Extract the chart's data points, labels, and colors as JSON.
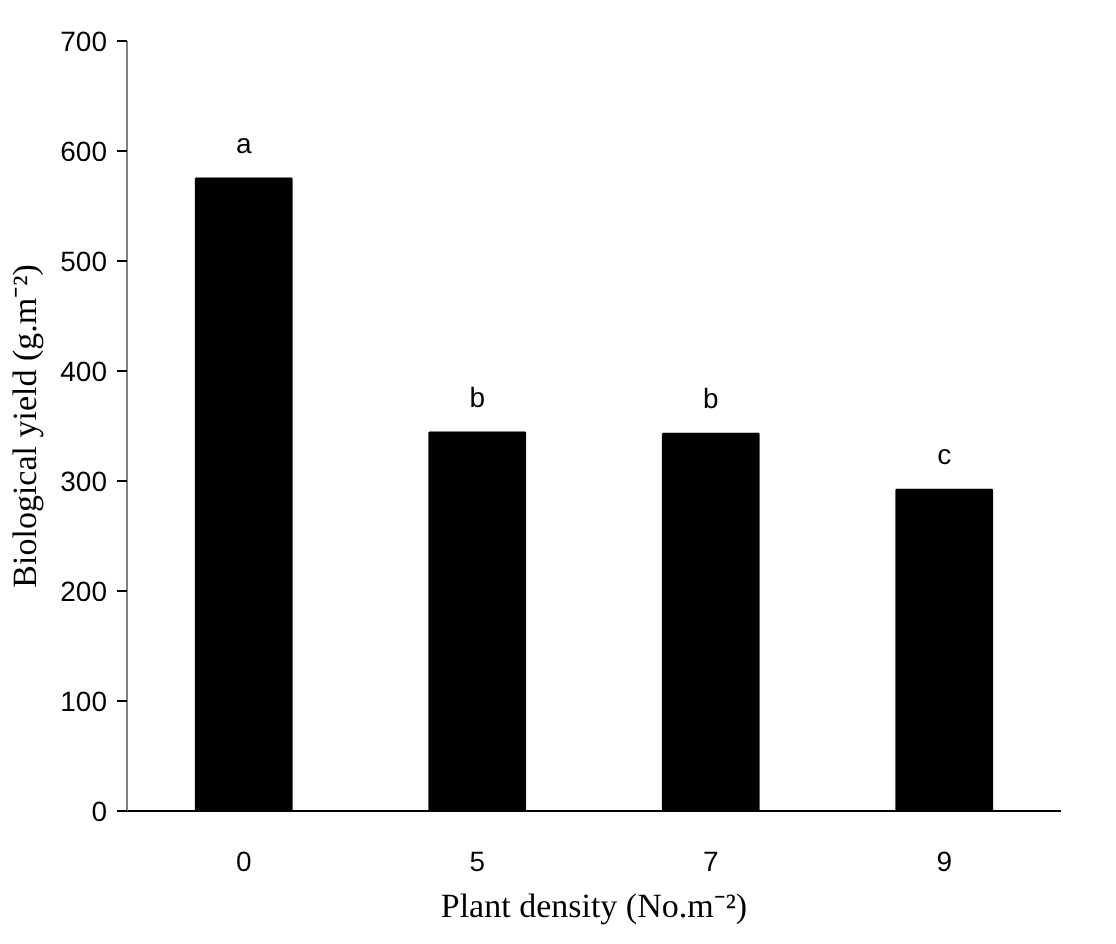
{
  "chart_data": {
    "type": "bar",
    "xlabel": "Plant density (No.m⁻²)",
    "ylabel": "Biological yield (g.m⁻²)",
    "categories": [
      "0",
      "5",
      "7",
      "9"
    ],
    "series": [
      {
        "color": "#000000",
        "values": [
          575,
          344,
          343,
          292
        ]
      }
    ],
    "ylim": [
      0,
      700
    ],
    "yticks": [
      0,
      100,
      200,
      300,
      400,
      500,
      600,
      700
    ],
    "grid": false,
    "annotations": [
      {
        "text": "a",
        "x": "0",
        "y": 575
      },
      {
        "text": "b",
        "x": "5",
        "y": 344
      },
      {
        "text": "b",
        "x": "7",
        "y": 343
      },
      {
        "text": "c",
        "x": "9",
        "y": 292
      }
    ]
  }
}
